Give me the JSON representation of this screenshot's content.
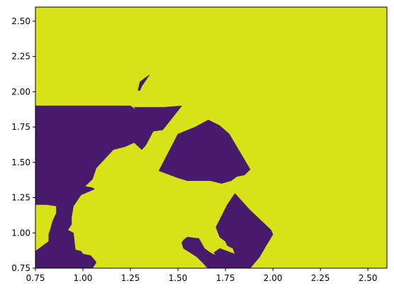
{
  "chart_data": {
    "type": "heatmap",
    "title": "",
    "xlabel": "",
    "ylabel": "",
    "xlim": [
      0.75,
      2.6
    ],
    "ylim": [
      0.75,
      2.6
    ],
    "x_ticks": [
      "0.75",
      "1.00",
      "1.25",
      "1.50",
      "1.75",
      "2.00",
      "2.25",
      "2.50"
    ],
    "y_ticks": [
      "0.75",
      "1.00",
      "1.25",
      "1.50",
      "1.75",
      "2.00",
      "2.25",
      "2.50"
    ],
    "grid": false,
    "legend": "none",
    "colors": {
      "background_class": "#d8e219",
      "region_class": "#481a6c",
      "edge": "#3a8c8b"
    },
    "regions": [
      {
        "name": "left-region",
        "points": [
          [
            0.75,
            1.9
          ],
          [
            1.25,
            1.9
          ],
          [
            1.28,
            1.87
          ],
          [
            1.27,
            1.89
          ],
          [
            1.28,
            1.89
          ],
          [
            1.36,
            1.89
          ],
          [
            1.43,
            1.89
          ],
          [
            1.52,
            1.9
          ],
          [
            1.42,
            1.73
          ],
          [
            1.37,
            1.72
          ],
          [
            1.33,
            1.62
          ],
          [
            1.31,
            1.59
          ],
          [
            1.27,
            1.64
          ],
          [
            1.22,
            1.61
          ],
          [
            1.16,
            1.59
          ],
          [
            1.07,
            1.46
          ],
          [
            1.05,
            1.38
          ],
          [
            1.01,
            1.33
          ],
          [
            1.05,
            1.32
          ],
          [
            1.06,
            1.31
          ],
          [
            0.99,
            1.27
          ],
          [
            0.96,
            1.21
          ],
          [
            0.94,
            1.2
          ],
          [
            0.91,
            1.19
          ],
          [
            0.86,
            1.19
          ],
          [
            0.81,
            1.2
          ],
          [
            0.76,
            1.2
          ],
          [
            0.75,
            1.2
          ]
        ]
      },
      {
        "name": "bottom-left-region",
        "points": [
          [
            0.75,
            0.87
          ],
          [
            0.76,
            0.88
          ],
          [
            0.82,
            0.94
          ],
          [
            0.82,
            0.99
          ],
          [
            0.83,
            1.03
          ],
          [
            0.84,
            1.08
          ],
          [
            0.86,
            1.14
          ],
          [
            0.86,
            1.19
          ],
          [
            0.91,
            1.19
          ],
          [
            0.96,
            1.21
          ],
          [
            0.99,
            1.27
          ],
          [
            1.06,
            1.31
          ],
          [
            0.99,
            1.27
          ],
          [
            0.95,
            1.19
          ],
          [
            0.94,
            1.11
          ],
          [
            0.94,
            1.06
          ],
          [
            0.92,
            1.02
          ],
          [
            0.95,
            1.0
          ],
          [
            0.96,
            0.88
          ],
          [
            0.99,
            0.87
          ],
          [
            1.0,
            0.85
          ],
          [
            1.04,
            0.84
          ],
          [
            1.06,
            0.81
          ],
          [
            1.07,
            0.79
          ],
          [
            1.05,
            0.75
          ],
          [
            0.75,
            0.75
          ]
        ]
      },
      {
        "name": "center-region",
        "points": [
          [
            1.4,
            1.44
          ],
          [
            1.5,
            1.7
          ],
          [
            1.59,
            1.75
          ],
          [
            1.66,
            1.8
          ],
          [
            1.72,
            1.76
          ],
          [
            1.77,
            1.7
          ],
          [
            1.88,
            1.45
          ],
          [
            1.85,
            1.41
          ],
          [
            1.81,
            1.4
          ],
          [
            1.78,
            1.37
          ],
          [
            1.73,
            1.35
          ],
          [
            1.67,
            1.37
          ],
          [
            1.6,
            1.37
          ],
          [
            1.55,
            1.37
          ],
          [
            1.5,
            1.39
          ],
          [
            1.44,
            1.42
          ]
        ]
      },
      {
        "name": "bottom-right-region",
        "points": [
          [
            1.7,
            1.04
          ],
          [
            1.72,
            0.97
          ],
          [
            1.75,
            0.94
          ],
          [
            1.76,
            0.91
          ],
          [
            1.79,
            0.89
          ],
          [
            1.8,
            0.85
          ],
          [
            1.72,
            0.89
          ],
          [
            1.69,
            0.86
          ],
          [
            1.7,
            0.84
          ],
          [
            1.67,
            0.86
          ],
          [
            1.64,
            0.89
          ],
          [
            1.61,
            0.96
          ],
          [
            1.55,
            0.97
          ],
          [
            1.53,
            0.95
          ],
          [
            1.52,
            0.93
          ],
          [
            1.53,
            0.89
          ],
          [
            1.6,
            0.83
          ],
          [
            1.63,
            0.79
          ],
          [
            1.65,
            0.76
          ],
          [
            1.66,
            0.75
          ],
          [
            1.88,
            0.75
          ],
          [
            1.93,
            0.83
          ],
          [
            1.96,
            0.9
          ],
          [
            2.0,
            0.99
          ],
          [
            1.99,
            1.02
          ],
          [
            1.88,
            1.16
          ],
          [
            1.8,
            1.28
          ],
          [
            1.76,
            1.2
          ]
        ]
      },
      {
        "name": "top-shard-region",
        "points": [
          [
            1.29,
            2.01
          ],
          [
            1.3,
            2.07
          ],
          [
            1.32,
            2.09
          ],
          [
            1.35,
            2.12
          ],
          [
            1.31,
            2.04
          ],
          [
            1.3,
            2.01
          ]
        ]
      }
    ]
  }
}
